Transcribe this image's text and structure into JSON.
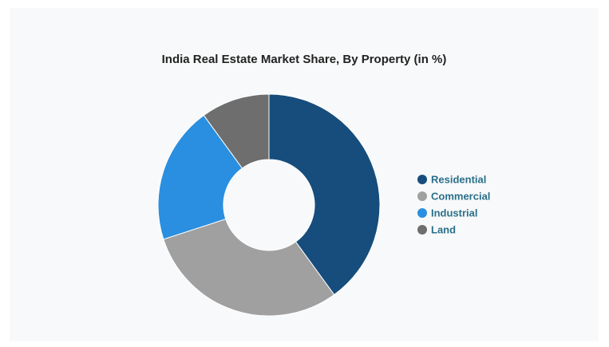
{
  "chart_data": {
    "type": "pie",
    "title": "India Real Estate Market Share, By Property (in %)",
    "categories": [
      "Residential",
      "Commercial",
      "Industrial",
      "Land"
    ],
    "values": [
      40,
      30,
      20,
      10
    ],
    "colors": [
      "#164d7c",
      "#a0a0a0",
      "#2a8fe0",
      "#6e6e6e"
    ],
    "donut": true,
    "legend": "right"
  }
}
